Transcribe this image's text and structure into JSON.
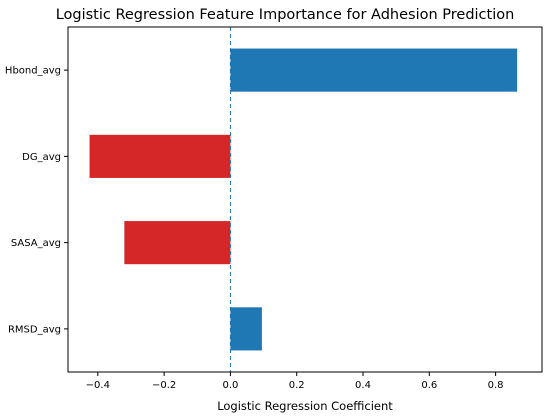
{
  "chart_data": {
    "type": "bar",
    "orientation": "horizontal",
    "title": "Logistic Regression Feature Importance for Adhesion Prediction",
    "xlabel": "Logistic Regression Coefficient",
    "ylabel": "",
    "categories": [
      "Hbond_avg",
      "DG_avg",
      "SASA_avg",
      "RMSD_avg"
    ],
    "values": [
      0.865,
      -0.425,
      -0.32,
      0.095
    ],
    "xlim": [
      -0.49,
      0.94
    ],
    "xticks": [
      -0.4,
      -0.2,
      0.0,
      0.2,
      0.4,
      0.6,
      0.8
    ],
    "xtick_labels": [
      "−0.4",
      "−0.2",
      "0.0",
      "0.2",
      "0.4",
      "0.6",
      "0.8"
    ],
    "reference_line": {
      "x": 0,
      "style": "dashed",
      "color": "#1f77b4"
    },
    "colors": {
      "positive": "#1f77b4",
      "negative": "#d62728",
      "axis": "#000000"
    },
    "grid": false,
    "legend": "none"
  }
}
